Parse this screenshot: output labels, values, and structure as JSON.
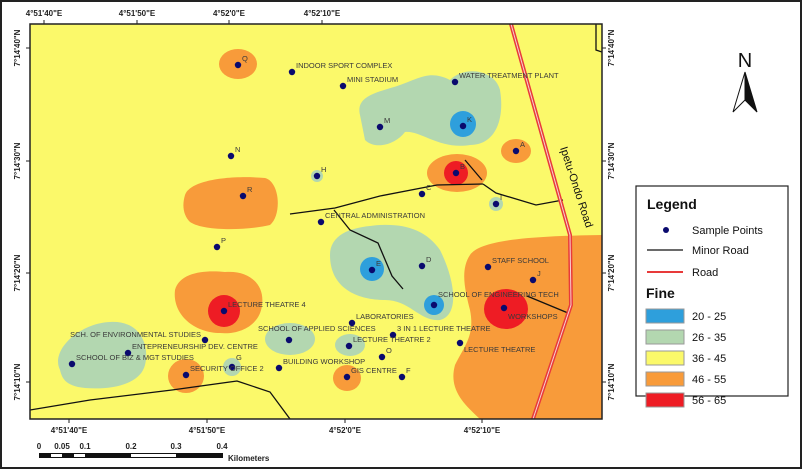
{
  "colors": {
    "class_20_25": "#2e9fdc",
    "class_26_35": "#b3d7b0",
    "class_36_45": "#fbf96a",
    "class_46_55": "#f89b3a",
    "class_56_65": "#ee1c24",
    "point": "#0a0a6e",
    "road": "#e83a3a",
    "minor_road": "#111111"
  },
  "axes": {
    "lon_labels": [
      "4°51'40\"E",
      "4°51'50\"E",
      "4°52'0\"E",
      "4°52'10\"E"
    ],
    "lat_labels": [
      "7°14'40\"N",
      "7°14'30\"N",
      "7°14'20\"N",
      "7°14'10\"N"
    ]
  },
  "north_arrow": {
    "label": "N"
  },
  "road_label": "Ipetu-Ondo Road",
  "legend": {
    "title": "Legend",
    "sample_points": "Sample Points",
    "minor_road": "Minor Road",
    "road": "Road",
    "fine_title": "Fine",
    "classes": [
      "20 - 25",
      "26 - 35",
      "36 - 45",
      "46 - 55",
      "56 - 65"
    ]
  },
  "scale_bar": {
    "ticks": [
      "0",
      "0.05",
      "0.1",
      "0.2",
      "0.3",
      "0.4"
    ],
    "unit": "Kilometers"
  },
  "points": [
    "Q",
    "INDOOR SPORT COMPLEX",
    "MINI STADIUM",
    "WATER TREATMENT PLANT",
    "M",
    "K",
    "A",
    "N",
    "H",
    "B",
    "R",
    "C",
    "I",
    "CENTRAL ADMINISTRATION",
    "P",
    "E",
    "D",
    "STAFF SCHOOL",
    "J",
    "SCHOOL OF ENGINEERING TECH",
    "WORKSHOPS",
    "LECTURE THEATRE 4",
    "LABORATORIES",
    "3 IN 1 LECTURE THEATRE",
    "SCHOOL OF APPLIED SCIENCES",
    "SCH. OF ENVIRONMENTAL STUDIES",
    "LECTURE THEATRE 2",
    "LECTURE THEATRE",
    "ENTEPRENEURSHIP DEV. CENTRE",
    "O",
    "SCHOOL OF BIZ & MGT STUDIES",
    "G",
    "SECURITY OFFICE 2",
    "BUILDING WORKSHOP",
    "GIS CENTRE",
    "F"
  ]
}
